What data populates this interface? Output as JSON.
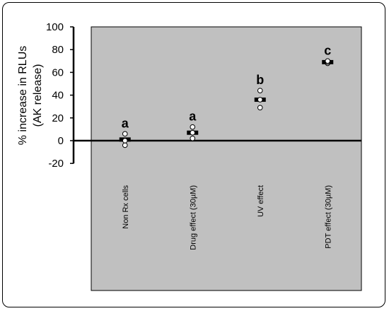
{
  "chart_data": {
    "type": "scatter",
    "ylabel_line1": "% increase in RLUs",
    "ylabel_line2": "(AK release)",
    "ylim": [
      -20,
      100
    ],
    "yticks": [
      -20,
      0,
      20,
      40,
      60,
      80,
      100
    ],
    "ytick_labels": [
      "-20",
      "0",
      "20",
      "40",
      "60",
      "80",
      "100"
    ],
    "grid": false,
    "plot_background": "#c0c0c0",
    "categories": [
      "Non Rx cells",
      "Drug effect (30µM)",
      "UV effect",
      "PDT effect (30µM)"
    ],
    "groups": [
      "a",
      "a",
      "b",
      "c"
    ],
    "means": [
      1,
      7,
      36,
      69
    ],
    "points": [
      [
        -4,
        0,
        6
      ],
      [
        2,
        7,
        12
      ],
      [
        29,
        36,
        44
      ],
      [
        68,
        69,
        70
      ]
    ]
  }
}
